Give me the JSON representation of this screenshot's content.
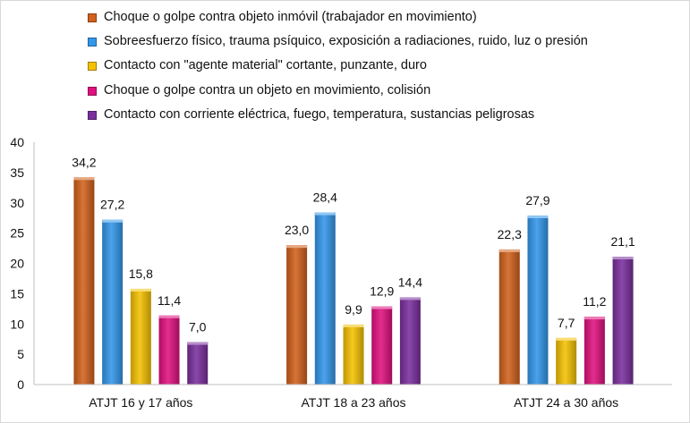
{
  "chart_data": {
    "type": "bar",
    "title": "",
    "xlabel": "",
    "ylabel": "",
    "ylim": [
      0,
      40
    ],
    "yticks": [
      0,
      5,
      10,
      15,
      20,
      25,
      30,
      35,
      40
    ],
    "categories": [
      "ATJT 16 y 17 años",
      "ATJT 18 a 23 años",
      "ATJT 24 a 30 años"
    ],
    "series": [
      {
        "name": "Choque o golpe contra objeto inmóvil  (trabajador en movimiento)",
        "color": "#d2611c",
        "values": [
          34.2,
          23.0,
          22.3
        ],
        "labels": [
          "34,2",
          "23,0",
          "22,3"
        ]
      },
      {
        "name": "Sobreesfuerzo físico, trauma psíquico, exposición a radiaciones, ruido, luz o presión",
        "color": "#3397ea",
        "values": [
          27.2,
          28.4,
          27.9
        ],
        "labels": [
          "27,2",
          "28,4",
          "27,9"
        ]
      },
      {
        "name": "Contacto con \"agente material\" cortante, punzante, duro",
        "color": "#f5c202",
        "values": [
          15.8,
          9.9,
          7.7
        ],
        "labels": [
          "15,8",
          "9,9",
          "7,7"
        ]
      },
      {
        "name": "Choque o golpe contra un objeto en movimiento, colisión",
        "color": "#e0117f",
        "values": [
          11.4,
          12.9,
          11.2
        ],
        "labels": [
          "11,4",
          "12,9",
          "11,2"
        ]
      },
      {
        "name": "Contacto con corriente eléctrica, fuego, temperatura, sustancias peligrosas",
        "color": "#7a2f9e",
        "values": [
          7.0,
          14.4,
          21.1
        ],
        "labels": [
          "7,0",
          "14,4",
          "21,1"
        ]
      }
    ],
    "legend_position": "top",
    "grid": false
  }
}
